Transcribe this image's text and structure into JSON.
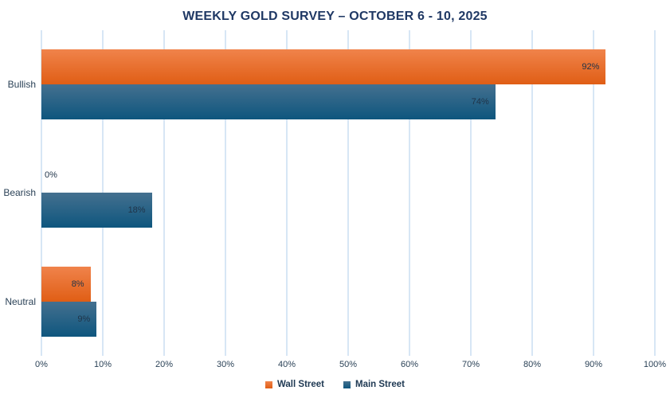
{
  "chart_data": {
    "type": "bar",
    "orientation": "horizontal",
    "title": "WEEKLY GOLD SURVEY – OCTOBER 6 - 10, 2025",
    "categories": [
      "Bullish",
      "Bearish",
      "Neutral"
    ],
    "series": [
      {
        "name": "Wall Street",
        "values": [
          92,
          0,
          8
        ],
        "labels": [
          "92%",
          "0%",
          "8%"
        ],
        "color_top": "#F0834B",
        "color_bottom": "#E05E15"
      },
      {
        "name": "Main Street",
        "values": [
          74,
          18,
          9
        ],
        "labels": [
          "74%",
          "18%",
          "9%"
        ],
        "color_top": "#44708F",
        "color_bottom": "#0E567E"
      }
    ],
    "xlabel": "",
    "ylabel": "",
    "xlim": [
      0,
      100
    ],
    "x_ticks": [
      "0%",
      "10%",
      "20%",
      "30%",
      "40%",
      "50%",
      "60%",
      "70%",
      "80%",
      "90%",
      "100%"
    ],
    "grid": "vertical",
    "legend_position": "bottom"
  },
  "colors": {
    "title_text": "#1F3864",
    "axis_text": "#2B4257",
    "data_label_text": "#1F3348",
    "gridline": "#D7E6F5",
    "background": "#FFFFFF"
  }
}
